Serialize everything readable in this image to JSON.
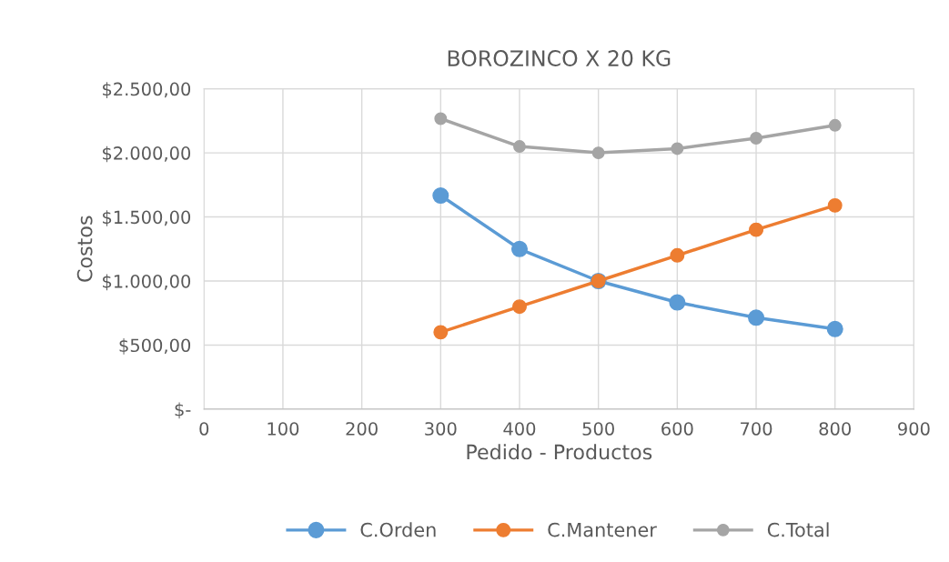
{
  "chart_data": {
    "type": "line",
    "title": "BOROZINCO X 20 KG",
    "xlabel": "Pedido - Productos",
    "ylabel": "Costos",
    "x": [
      300,
      400,
      500,
      600,
      700,
      800
    ],
    "series": [
      {
        "name": "C.Orden",
        "color": "#5b9bd5",
        "values": [
          1667,
          1250,
          1000,
          833,
          714,
          625
        ]
      },
      {
        "name": "C.Mantener",
        "color": "#ed7d31",
        "values": [
          600,
          800,
          1000,
          1200,
          1400,
          1590
        ]
      },
      {
        "name": "C.Total",
        "color": "#a5a5a5",
        "values": [
          2267,
          2050,
          2000,
          2033,
          2114,
          2215
        ]
      }
    ],
    "xlim": [
      0,
      900
    ],
    "xticks": [
      0,
      100,
      200,
      300,
      400,
      500,
      600,
      700,
      800,
      900
    ],
    "ylim": [
      0,
      2500
    ],
    "yticks": [
      {
        "value": 0,
        "label": "$-"
      },
      {
        "value": 500,
        "label": "$500,00"
      },
      {
        "value": 1000,
        "label": "$1.000,00"
      },
      {
        "value": 1500,
        "label": "$1.500,00"
      },
      {
        "value": 2000,
        "label": "$2.000,00"
      },
      {
        "value": 2500,
        "label": "$2.500,00"
      }
    ],
    "grid": true,
    "legend": "bottom",
    "marker": "circle",
    "line_style": "solid"
  }
}
